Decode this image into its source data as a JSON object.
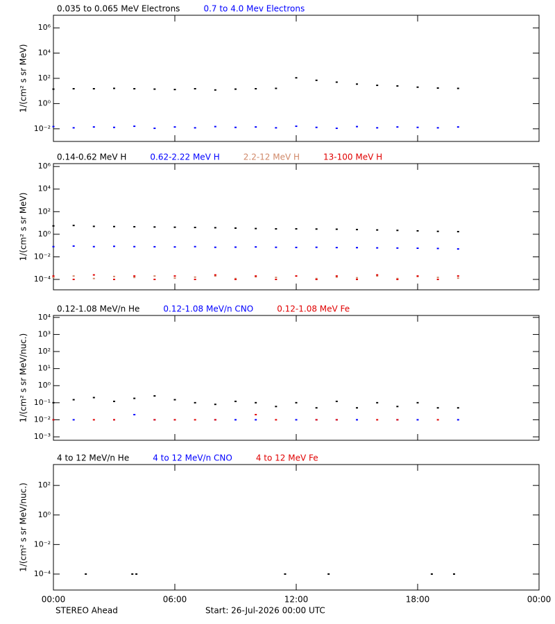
{
  "chart_data": [
    {
      "type": "scatter",
      "log_y": true,
      "ylabel": "1/(cm² s sr MeV)",
      "x": [
        0,
        1,
        2,
        3,
        4,
        5,
        6,
        7,
        8,
        9,
        10,
        11,
        12,
        13,
        14,
        15,
        16,
        17,
        18,
        19,
        20
      ],
      "xlim": [
        0,
        24
      ],
      "xticks": [
        0,
        6,
        12,
        18,
        24
      ],
      "ylim": [
        0.001,
        10000000
      ],
      "yticks": [
        {
          "value": 0.01,
          "label": "10⁻²"
        },
        {
          "value": 1,
          "label": "10⁰"
        },
        {
          "value": 100,
          "label": "10²"
        },
        {
          "value": 10000,
          "label": "10⁴"
        },
        {
          "value": 1000000,
          "label": "10⁶"
        }
      ],
      "series": [
        {
          "name": "0.035 to 0.065 MeV Electrons",
          "color": "#000000",
          "values": [
            14,
            15,
            15,
            16,
            15,
            14,
            13,
            15,
            12,
            14,
            15,
            16,
            110,
            70,
            50,
            35,
            28,
            25,
            20,
            17,
            16
          ]
        },
        {
          "name": "0.7 to 4.0 Mev Electrons",
          "color": "#0000ff",
          "values": [
            0.015,
            0.012,
            0.014,
            0.013,
            0.016,
            0.011,
            0.014,
            0.012,
            0.015,
            0.013,
            0.014,
            0.012,
            0.016,
            0.013,
            0.011,
            0.015,
            0.012,
            0.014,
            0.013,
            0.012,
            0.014
          ]
        }
      ]
    },
    {
      "type": "scatter",
      "log_y": true,
      "ylabel": "1/(cm² s sr MeV)",
      "x": [
        0,
        1,
        2,
        3,
        4,
        5,
        6,
        7,
        8,
        9,
        10,
        11,
        12,
        13,
        14,
        15,
        16,
        17,
        18,
        19,
        20
      ],
      "xlim": [
        0,
        24
      ],
      "xticks": [
        0,
        6,
        12,
        18,
        24
      ],
      "ylim": [
        1.2e-05,
        1800000
      ],
      "yticks": [
        {
          "value": 0.0001,
          "label": "10⁻⁴"
        },
        {
          "value": 0.01,
          "label": "10⁻²"
        },
        {
          "value": 1,
          "label": "10⁰"
        },
        {
          "value": 100,
          "label": "10²"
        },
        {
          "value": 10000,
          "label": "10⁴"
        },
        {
          "value": 1000000,
          "label": "10⁶"
        }
      ],
      "series": [
        {
          "name": "0.14-0.62 MeV H",
          "color": "#000000",
          "values": [
            5.5,
            6,
            5,
            4.8,
            4.6,
            4.4,
            4.2,
            4,
            3.8,
            3.5,
            3.2,
            3,
            3,
            2.9,
            2.8,
            2.6,
            2.4,
            2.2,
            2,
            1.8,
            1.7
          ]
        },
        {
          "name": "0.62-2.22 MeV H",
          "color": "#0000ff",
          "values": [
            0.08,
            0.09,
            0.08,
            0.085,
            0.08,
            0.078,
            0.075,
            0.08,
            0.07,
            0.072,
            0.075,
            0.07,
            0.068,
            0.07,
            0.066,
            0.065,
            0.062,
            0.06,
            0.058,
            0.055,
            0.05
          ]
        },
        {
          "name": "2.2-12 MeV H",
          "color": "#d08868",
          "values": [
            0.00015,
            0.0002,
            0.00012,
            0.00018,
            0.00015,
            0.0002,
            0.00013,
            0.00016,
            0.0002,
            0.00012,
            0.00017,
            0.00015,
            0.0002,
            0.00012,
            0.00016,
            0.00014,
            0.0002,
            0.00012,
            0.00018,
            0.00015,
            0.00013
          ]
        },
        {
          "name": "13-100 MeV H",
          "color": "#e00000",
          "values": [
            0.0002,
            0.0001,
            0.00025,
            0.0001,
            0.0002,
            0.0001,
            0.0002,
            0.0001,
            0.00025,
            0.0001,
            0.0002,
            0.0001,
            0.0002,
            0.0001,
            0.0002,
            0.0001,
            0.00025,
            0.0001,
            0.0002,
            0.0001,
            0.0002
          ]
        }
      ]
    },
    {
      "type": "scatter",
      "log_y": true,
      "ylabel": "1/(cm² s sr MeV/nuc.)",
      "x": [
        0,
        1,
        2,
        3,
        4,
        5,
        6,
        7,
        8,
        9,
        10,
        11,
        12,
        13,
        14,
        15,
        16,
        17,
        18,
        19,
        20
      ],
      "xlim": [
        0,
        24
      ],
      "xticks": [
        0,
        6,
        12,
        18,
        24
      ],
      "ylim": [
        0.00063,
        13000
      ],
      "yticks": [
        {
          "value": 0.001,
          "label": "10⁻³"
        },
        {
          "value": 0.01,
          "label": "10⁻²"
        },
        {
          "value": 0.1,
          "label": "10⁻¹"
        },
        {
          "value": 1,
          "label": "10⁰"
        },
        {
          "value": 10,
          "label": "10¹"
        },
        {
          "value": 100,
          "label": "10²"
        },
        {
          "value": 1000,
          "label": "10³"
        },
        {
          "value": 10000,
          "label": "10⁴"
        }
      ],
      "series": [
        {
          "name": "0.12-1.08 MeV/n He",
          "color": "#000000",
          "values": [
            0.1,
            0.15,
            0.2,
            0.12,
            0.18,
            0.25,
            0.15,
            0.1,
            0.08,
            0.12,
            0.1,
            0.06,
            0.1,
            0.05,
            0.12,
            0.05,
            0.1,
            0.06,
            0.1,
            0.05,
            0.05
          ]
        },
        {
          "name": "0.12-1.08 MeV/n CNO",
          "color": "#0000ff",
          "values": [
            0.01,
            0.01,
            null,
            0.01,
            0.02,
            0.01,
            0.01,
            null,
            0.01,
            0.01,
            0.01,
            null,
            0.01,
            0.01,
            0.01,
            0.01,
            null,
            0.01,
            0.01,
            null,
            0.01
          ]
        },
        {
          "name": "0.12-1.08 MeV Fe",
          "color": "#e00000",
          "values": [
            0.01,
            null,
            0.01,
            0.01,
            null,
            0.01,
            0.01,
            0.01,
            0.01,
            null,
            0.02,
            0.01,
            null,
            0.01,
            0.01,
            null,
            0.01,
            0.01,
            null,
            0.01,
            null
          ]
        }
      ]
    },
    {
      "type": "scatter",
      "log_y": true,
      "ylabel": "1/(cm² s sr MeV/nuc.)",
      "x": [
        1.6,
        3.9,
        4.1,
        11.45,
        13.6,
        18.7,
        19.8
      ],
      "xlim": [
        0,
        24
      ],
      "xticks": [
        {
          "value": 0,
          "label": "00:00"
        },
        {
          "value": 6,
          "label": "06:00"
        },
        {
          "value": 12,
          "label": "12:00"
        },
        {
          "value": 18,
          "label": "18:00"
        },
        {
          "value": 24,
          "label": "00:00"
        }
      ],
      "ylim": [
        8.3e-06,
        2600
      ],
      "yticks": [
        {
          "value": 0.0001,
          "label": "10⁻⁴"
        },
        {
          "value": 0.01,
          "label": "10⁻²"
        },
        {
          "value": 1,
          "label": "10⁰"
        },
        {
          "value": 100,
          "label": "10²"
        }
      ],
      "series": [
        {
          "name": "4 to 12 MeV/n He",
          "color": "#000000",
          "values": [
            0.0001,
            0.0001,
            0.0001,
            0.0001,
            0.0001,
            0.0001,
            0.0001
          ]
        },
        {
          "name": "4 to 12 MeV/n CNO",
          "color": "#0000ff",
          "values": [
            null,
            null,
            null,
            null,
            null,
            null,
            null
          ]
        },
        {
          "name": "4 to 12 MeV Fe",
          "color": "#e00000",
          "values": [
            null,
            null,
            null,
            null,
            null,
            null,
            null
          ]
        }
      ]
    }
  ],
  "footer": {
    "left": "STEREO Ahead",
    "center": "Start: 26-Jul-2026 00:00 UTC"
  }
}
